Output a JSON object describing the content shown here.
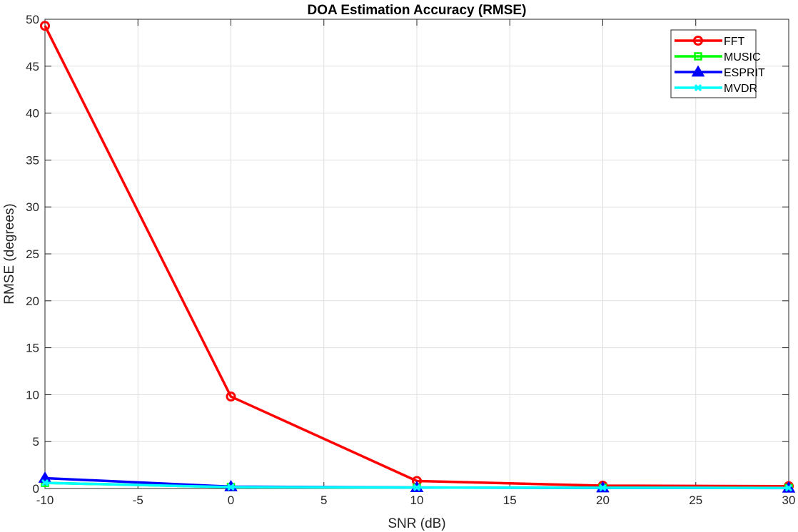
{
  "chart_data": {
    "type": "line",
    "title": "DOA Estimation Accuracy (RMSE)",
    "xlabel": "SNR (dB)",
    "ylabel": "RMSE (degrees)",
    "x": [
      -10,
      0,
      10,
      20,
      30
    ],
    "xlim": [
      -10,
      30
    ],
    "ylim": [
      0,
      50
    ],
    "xticks": [
      -10,
      -5,
      0,
      5,
      10,
      15,
      20,
      25,
      30
    ],
    "yticks": [
      0,
      5,
      10,
      15,
      20,
      25,
      30,
      35,
      40,
      45,
      50
    ],
    "grid": true,
    "legend_position": "top-right",
    "series": [
      {
        "name": "FFT",
        "values": [
          49.3,
          9.8,
          0.8,
          0.3,
          0.25
        ],
        "color": "#ff0000",
        "marker": "circle"
      },
      {
        "name": "MUSIC",
        "values": [
          0.6,
          0.15,
          0.1,
          0.08,
          0.06
        ],
        "color": "#00ff00",
        "marker": "square"
      },
      {
        "name": "ESPRIT",
        "values": [
          1.1,
          0.2,
          0.1,
          0.07,
          0.05
        ],
        "color": "#0000ff",
        "marker": "triangle"
      },
      {
        "name": "MVDR",
        "values": [
          0.6,
          0.15,
          0.1,
          0.08,
          0.06
        ],
        "color": "#00ffff",
        "marker": "x"
      }
    ]
  }
}
